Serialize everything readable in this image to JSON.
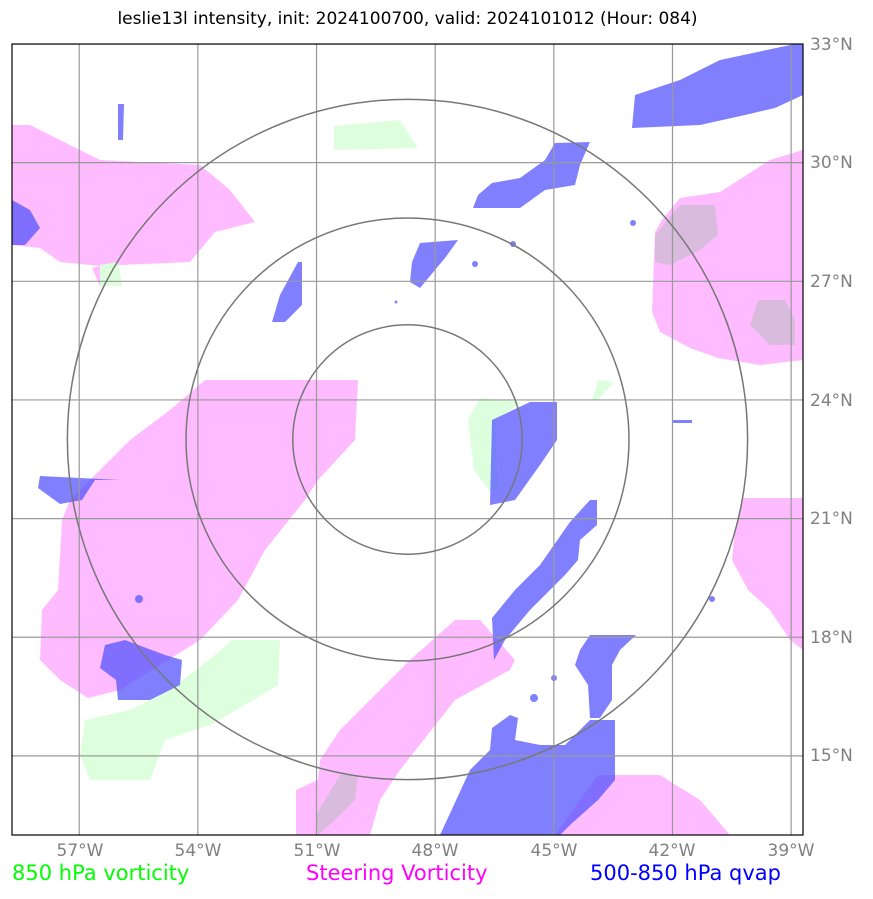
{
  "title": "leslie13l intensity, init: 2024100700, valid: 2024101012 (Hour: 084)",
  "lat_labels": [
    "33°N",
    "30°N",
    "27°N",
    "24°N",
    "21°N",
    "18°N",
    "15°N"
  ],
  "lon_labels": [
    "57°W",
    "54°W",
    "51°W",
    "48°W",
    "45°W",
    "42°W",
    "39°W"
  ],
  "legend": {
    "vort850": {
      "label": "850 hPa vorticity",
      "color": "#00ff00"
    },
    "steering": {
      "label": "Steering Vorticity",
      "color": "#ff00ff"
    },
    "qvap": {
      "label": "500-850 hPa qvap",
      "color": "#0000ff"
    }
  },
  "map_extent": {
    "lon_min": -58.7,
    "lon_max": -38.7,
    "lat_min": 13.0,
    "lat_max": 33.0
  },
  "storm_center": {
    "lon": -48.7,
    "lat": 23.0
  },
  "range_rings_deg": [
    2.9,
    5.6,
    8.6
  ]
}
